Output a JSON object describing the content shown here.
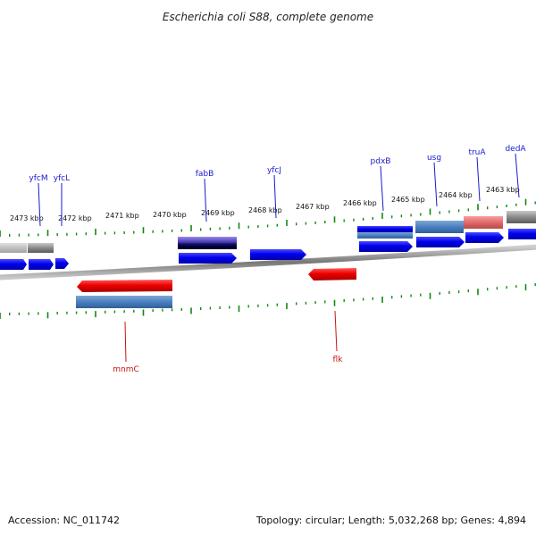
{
  "title": "Escherichia coli S88, complete genome",
  "ticks": [
    {
      "label": "2473 kbp"
    },
    {
      "label": "2472 kbp"
    },
    {
      "label": "2471 kbp"
    },
    {
      "label": "2470 kbp"
    },
    {
      "label": "2469 kbp"
    },
    {
      "label": "2468 kbp"
    },
    {
      "label": "2467 kbp"
    },
    {
      "label": "2466 kbp"
    },
    {
      "label": "2465 kbp"
    },
    {
      "label": "2464 kbp"
    },
    {
      "label": "2463 kbp"
    }
  ],
  "genes_forward": [
    {
      "name": "yfcM"
    },
    {
      "name": "yfcL"
    },
    {
      "name": "fabB"
    },
    {
      "name": "yfcJ"
    },
    {
      "name": "pdxB"
    },
    {
      "name": "usg"
    },
    {
      "name": "truA"
    },
    {
      "name": "dedA"
    }
  ],
  "genes_reverse": [
    {
      "name": "mnmC"
    },
    {
      "name": "flk"
    }
  ],
  "footer": {
    "accession": "Accession: NC_011742",
    "summary": "Topology: circular; Length: 5,032,268 bp; Genes: 4,894"
  },
  "colors": {
    "forward_gene": "#0000ee",
    "reverse_gene": "#ee0000",
    "forward_label": "#1a1acc",
    "reverse_label": "#cc1111",
    "tick_mark": "#118811",
    "backbone": "#888888"
  }
}
